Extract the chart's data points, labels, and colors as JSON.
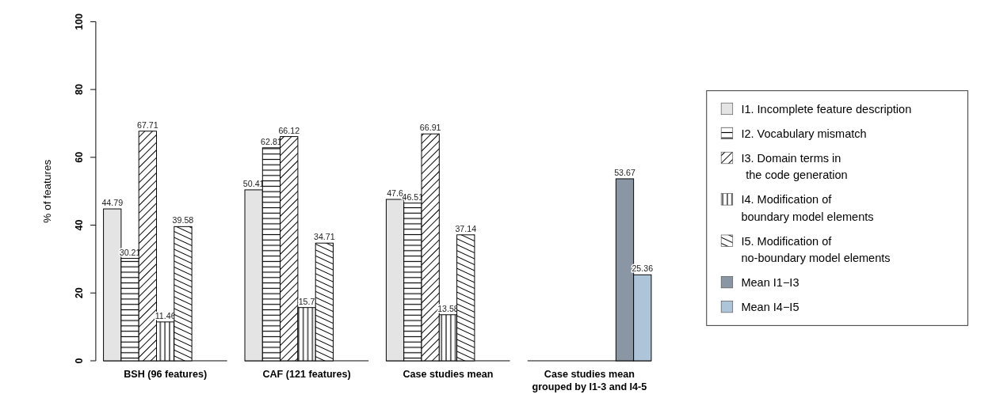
{
  "chart_data": {
    "type": "bar",
    "ylabel": "% of features",
    "categories": [
      "BSH (96 features)",
      "CAF (121 features)",
      "Case studies mean",
      "Case studies mean grouped by I1-3 and I4-5"
    ],
    "series": [
      {
        "name": "I1. Incomplete feature description",
        "color": "#e4e4e4",
        "values": [
          44.79,
          50.41,
          47.6,
          null
        ]
      },
      {
        "name": "I2. Vocabulary mismatch",
        "color": "#000000",
        "values": [
          30.21,
          62.81,
          46.51,
          null
        ]
      },
      {
        "name": "I3. Domain terms in\nthe code generation",
        "color": "#000000",
        "values": [
          67.71,
          66.12,
          66.91,
          null
        ]
      },
      {
        "name": "I4. Modification of\nboundary model elements",
        "color": "#000000",
        "values": [
          11.46,
          15.7,
          13.58,
          null
        ]
      },
      {
        "name": "I5. Modification of\nno-boundary model elements",
        "color": "#000000",
        "values": [
          39.58,
          34.71,
          37.14,
          null
        ]
      },
      {
        "name": "Mean I1−I3",
        "color": "#8a96a3",
        "values": [
          null,
          null,
          null,
          53.67
        ]
      },
      {
        "name": "Mean I4−I5",
        "color": "#aec4d8",
        "values": [
          null,
          null,
          null,
          25.36
        ]
      }
    ],
    "ylim": [
      0,
      100
    ],
    "yticks": [
      0,
      20,
      40,
      60,
      80,
      100
    ],
    "data_labels": true,
    "legend": "right"
  }
}
